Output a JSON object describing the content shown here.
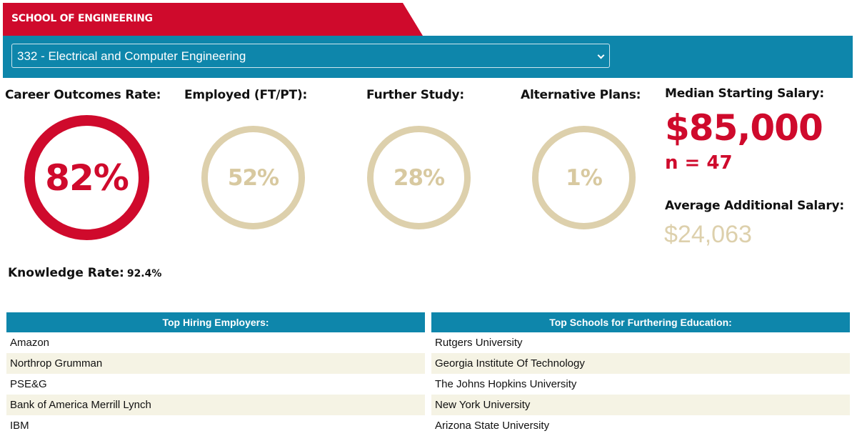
{
  "header": {
    "school": "SCHOOL OF ENGINEERING",
    "program_selected": "332 - Electrical and Computer Engineering"
  },
  "stats": {
    "career_outcomes": {
      "label": "Career Outcomes Rate:",
      "value": "82%",
      "percent": 82
    },
    "employed": {
      "label": "Employed (FT/PT):",
      "value": "52%",
      "percent": 52
    },
    "further_study": {
      "label": "Further Study:",
      "value": "28%",
      "percent": 28
    },
    "alternative_plans": {
      "label": "Alternative Plans:",
      "value": "1%",
      "percent": 1
    }
  },
  "salary": {
    "median_label": "Median Starting Salary:",
    "median_value": "$85,000",
    "n_label": "n = 47",
    "average_additional_label": "Average Additional Salary:",
    "average_additional_value": "$24,063"
  },
  "knowledge": {
    "label": "Knowledge Rate:",
    "value": "92.4%"
  },
  "employers": {
    "header": "Top Hiring Employers:",
    "rows": [
      "Amazon",
      "Northrop Grumman",
      "PSE&G",
      "Bank of America Merrill Lynch",
      "IBM"
    ]
  },
  "schools": {
    "header": "Top Schools for Furthering Education:",
    "rows": [
      "Rutgers University",
      "Georgia Institute Of Technology",
      "The Johns Hopkins University",
      "New York University",
      "Arizona State University"
    ]
  },
  "colors": {
    "accent_red": "#cf0a2c",
    "bar_blue": "#0e86ab",
    "gold": "#ddd0ac",
    "row_alt": "#f5f3e4"
  }
}
